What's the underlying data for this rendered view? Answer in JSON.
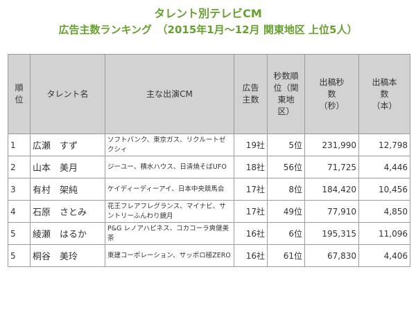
{
  "title": {
    "line1": "タレント別テレビCM",
    "line2": "広告主数ランキング　（2015年1月〜12月 関東地区 上位5人）"
  },
  "headers": {
    "rank": "順位",
    "talent": "タレント名",
    "cm": "主な出演CM",
    "advertisers": "広告主数",
    "seconds_rank": "秒数順位（関東地区）",
    "seconds": "出稿秒数（秒）",
    "count": "出稿本数（本）"
  },
  "rows": [
    {
      "rank": "1",
      "name": "広瀬　すず",
      "cm": "ソフトバンク、東京ガス、リクルートゼクシィ",
      "advertisers": "19社",
      "seconds_rank": "5位",
      "seconds": "231,990",
      "count": "12,798"
    },
    {
      "rank": "2",
      "name": "山本　美月",
      "cm": "ジーユー、積水ハウス、日清焼そばUFO",
      "advertisers": "18社",
      "seconds_rank": "56位",
      "seconds": "71,725",
      "count": "4,446"
    },
    {
      "rank": "3",
      "name": "有村　架純",
      "cm": "ケイディーディーアイ、日本中央競馬会",
      "advertisers": "17社",
      "seconds_rank": "8位",
      "seconds": "184,420",
      "count": "10,456"
    },
    {
      "rank": "4",
      "name": "石原　さとみ",
      "cm": "花王フレアフレグランス、マイナビ、サントリーふんわり鏡月",
      "advertisers": "17社",
      "seconds_rank": "49位",
      "seconds": "77,910",
      "count": "4,850"
    },
    {
      "rank": "5",
      "name": "綾瀬　はるか",
      "cm": "P&G レノアハピネス、コカコーラ爽健美茶",
      "advertisers": "16社",
      "seconds_rank": "6位",
      "seconds": "195,315",
      "count": "11,096"
    },
    {
      "rank": "5",
      "name": "桐谷　美玲",
      "cm": "東建コーポレーション、サッポロ極ZERO",
      "advertisers": "16社",
      "seconds_rank": "61位",
      "seconds": "67,830",
      "count": "4,406"
    }
  ]
}
